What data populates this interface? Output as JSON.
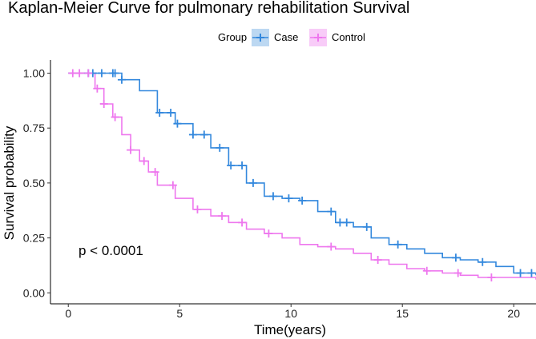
{
  "chart_data": {
    "type": "line",
    "title": "Kaplan-Meier Curve for pulmonary rehabilitation Survival",
    "xlabel": "Time(years)",
    "ylabel": "Survival probability",
    "xlim": [
      -0.8,
      21
    ],
    "ylim": [
      -0.05,
      1.06
    ],
    "xticks": [
      0,
      5,
      10,
      15,
      20
    ],
    "xtick_labels": [
      "0",
      "5",
      "10",
      "15",
      "20"
    ],
    "yticks": [
      0,
      0.25,
      0.5,
      0.75,
      1
    ],
    "ytick_labels": [
      "0.00",
      "0.25",
      "0.50",
      "0.75",
      "1.00"
    ],
    "grid": false,
    "legend": {
      "title": "Group",
      "position": "top"
    },
    "annotation": "p < 0.0001",
    "series": [
      {
        "name": "Case",
        "color": "#3388dd",
        "x": [
          0.8,
          1.6,
          2.4,
          3.2,
          4.0,
          4.8,
          5.6,
          6.4,
          7.2,
          8.0,
          8.8,
          9.6,
          10.4,
          11.2,
          12.0,
          12.8,
          13.6,
          14.4,
          15.2,
          16.0,
          16.8,
          17.6,
          18.4,
          19.2,
          20.0,
          21.0
        ],
        "y": [
          1.0,
          1.0,
          0.97,
          0.92,
          0.82,
          0.77,
          0.72,
          0.66,
          0.58,
          0.5,
          0.44,
          0.43,
          0.42,
          0.37,
          0.32,
          0.3,
          0.25,
          0.22,
          0.2,
          0.18,
          0.16,
          0.15,
          0.14,
          0.12,
          0.09,
          0.08
        ]
      },
      {
        "name": "Control",
        "color": "#ee77ee",
        "x": [
          0.8,
          1.2,
          1.6,
          2.0,
          2.4,
          2.8,
          3.2,
          3.6,
          4.0,
          4.8,
          5.6,
          6.4,
          7.2,
          8.0,
          8.8,
          9.6,
          10.4,
          11.2,
          12.0,
          12.8,
          13.6,
          14.4,
          15.2,
          16.0,
          16.8,
          17.6,
          18.4,
          19.2,
          20.0,
          21.0
        ],
        "y": [
          1.0,
          0.93,
          0.86,
          0.8,
          0.72,
          0.65,
          0.6,
          0.55,
          0.49,
          0.43,
          0.38,
          0.35,
          0.32,
          0.29,
          0.27,
          0.25,
          0.22,
          0.21,
          0.2,
          0.18,
          0.15,
          0.13,
          0.11,
          0.1,
          0.09,
          0.08,
          0.07,
          0.07,
          0.07,
          0.06
        ]
      }
    ],
    "censor_marks": [
      {
        "series": "Case",
        "x": [
          0.9,
          1.1,
          1.5,
          2.0,
          2.1,
          2.4,
          4.1,
          4.6,
          4.9,
          5.6,
          6.1,
          6.8,
          7.3,
          7.8,
          8.3,
          9.2,
          9.9,
          10.5,
          11.8,
          12.2,
          12.5,
          13.4,
          14.8,
          17.4,
          18.6,
          20.3,
          20.8
        ]
      },
      {
        "series": "Control",
        "x": [
          0.2,
          0.5,
          0.9,
          1.3,
          1.6,
          2.1,
          2.8,
          3.4,
          3.9,
          4.7,
          5.8,
          6.9,
          7.8,
          9.0,
          11.8,
          13.9,
          16.1,
          17.5,
          19.0
        ]
      }
    ]
  }
}
